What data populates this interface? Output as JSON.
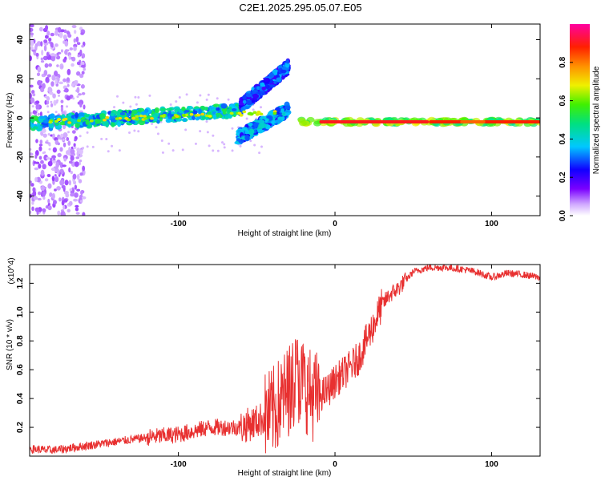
{
  "title": "C2E1.2025.295.05.07.E05",
  "colors": {
    "snr_line": "#e83030",
    "frame": "#000000"
  },
  "chart_data": [
    {
      "type": "heatmap",
      "name": "spectrogram",
      "xlabel": "Height of straight line (km)",
      "ylabel": "Frequency (Hz)",
      "xlim": [
        -195,
        131
      ],
      "ylim": [
        -50,
        48
      ],
      "xticks": [
        -100,
        0,
        100
      ],
      "xtick_labels": [
        "-100",
        "0",
        "100"
      ],
      "yticks": [
        -40,
        -20,
        0,
        20,
        40
      ],
      "ytick_labels": [
        "-40",
        "-20",
        "0",
        "20",
        "40"
      ],
      "colorbar": {
        "label": "Normalized spectral amplitude",
        "range": [
          0,
          1
        ],
        "ticks": [
          0.0,
          0.2,
          0.4,
          0.6,
          0.8
        ],
        "tick_labels": [
          "0.0",
          "0.2",
          "0.4",
          "0.6",
          "0.8"
        ],
        "colormap": "rainbow (white-violet-blue-cyan-green-yellow-orange-red-magenta)"
      },
      "features": [
        {
          "name": "main band",
          "x": [
            -195,
            -60
          ],
          "freq_start": -3,
          "freq_end": 4,
          "amplitude": 0.45
        },
        {
          "name": "diverging upper branch",
          "x": [
            -60,
            -30
          ],
          "freq_start": 6,
          "freq_end": 26,
          "amplitude": 0.3
        },
        {
          "name": "diverging lower branch",
          "x": [
            -62,
            -30
          ],
          "freq_start": -10,
          "freq_end": 4,
          "amplitude": 0.35
        },
        {
          "name": "steady band",
          "x": [
            -22,
            131
          ],
          "freq_start": -2,
          "freq_end": -2,
          "amplitude": 0.95
        }
      ]
    },
    {
      "type": "line",
      "name": "snr",
      "xlabel": "Height of straight line (km)",
      "ylabel": "SNR (10 * v/v)",
      "yscale_note": "(x10^4)",
      "xlim": [
        -195,
        131
      ],
      "ylim": [
        0,
        1.33
      ],
      "xticks": [
        -100,
        0,
        100
      ],
      "xtick_labels": [
        "-100",
        "0",
        "100"
      ],
      "yticks": [
        0.2,
        0.4,
        0.6,
        0.8,
        1.0,
        1.2
      ],
      "ytick_labels": [
        "0.2",
        "0.4",
        "0.6",
        "0.8",
        "1.0",
        "1.2"
      ],
      "series": [
        {
          "name": "SNR",
          "x": [
            -195,
            -180,
            -160,
            -140,
            -120,
            -100,
            -80,
            -60,
            -50,
            -40,
            -30,
            -25,
            -20,
            -15,
            -10,
            -5,
            0,
            5,
            10,
            15,
            20,
            25,
            30,
            35,
            40,
            45,
            50,
            60,
            70,
            80,
            90,
            100,
            110,
            120,
            131
          ],
          "values": [
            0.05,
            0.04,
            0.07,
            0.1,
            0.13,
            0.15,
            0.2,
            0.2,
            0.24,
            0.3,
            0.45,
            0.55,
            0.5,
            0.42,
            0.42,
            0.45,
            0.52,
            0.57,
            0.62,
            0.68,
            0.8,
            0.92,
            1.05,
            1.12,
            1.16,
            1.22,
            1.28,
            1.31,
            1.31,
            1.3,
            1.28,
            1.24,
            1.27,
            1.26,
            1.24
          ]
        }
      ]
    }
  ]
}
